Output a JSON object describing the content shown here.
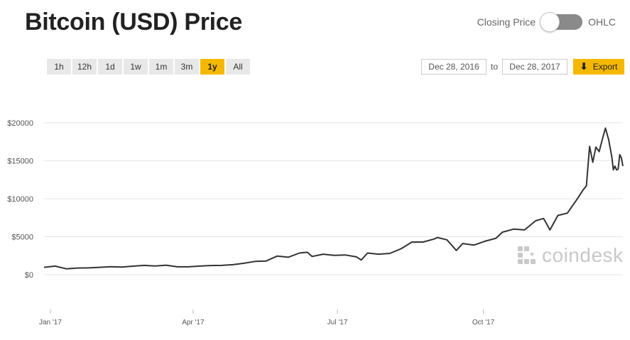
{
  "title": "Bitcoin (USD) Price",
  "toggle": {
    "left_label": "Closing Price",
    "right_label": "OHLC"
  },
  "ranges": [
    {
      "label": "1h",
      "active": false
    },
    {
      "label": "12h",
      "active": false
    },
    {
      "label": "1d",
      "active": false
    },
    {
      "label": "1w",
      "active": false
    },
    {
      "label": "1m",
      "active": false
    },
    {
      "label": "3m",
      "active": false
    },
    {
      "label": "1y",
      "active": true
    },
    {
      "label": "All",
      "active": false
    }
  ],
  "date_range": {
    "from": "Dec 28, 2016",
    "separator": "to",
    "to": "Dec 28, 2017"
  },
  "export_label": "Export",
  "watermark": "coindesk",
  "colors": {
    "accent": "#f5b800",
    "line": "#333333",
    "grid": "#e6e6e6",
    "watermark": "#c9c9c9"
  },
  "chart_data": {
    "type": "line",
    "ylim": [
      0,
      20000
    ],
    "y_ticks": [
      {
        "value": 0,
        "label": "$0"
      },
      {
        "value": 5000,
        "label": "$5000"
      },
      {
        "value": 10000,
        "label": "$10000"
      },
      {
        "value": 15000,
        "label": "$15000"
      },
      {
        "value": 20000,
        "label": "$20000"
      }
    ],
    "x_ticks": [
      {
        "date": "2017-01-01",
        "label": "Jan '17"
      },
      {
        "date": "2017-04-01",
        "label": "Apr '17"
      },
      {
        "date": "2017-07-01",
        "label": "Jul '17"
      },
      {
        "date": "2017-10-01",
        "label": "Oct '17"
      }
    ],
    "xlim": [
      "2016-12-28",
      "2017-12-28"
    ],
    "series": [
      {
        "points": [
          [
            "2016-12-28",
            975
          ],
          [
            "2017-01-04",
            1130
          ],
          [
            "2017-01-11",
            780
          ],
          [
            "2017-01-18",
            880
          ],
          [
            "2017-01-25",
            900
          ],
          [
            "2017-02-01",
            970
          ],
          [
            "2017-02-08",
            1050
          ],
          [
            "2017-02-15",
            1010
          ],
          [
            "2017-02-22",
            1120
          ],
          [
            "2017-03-01",
            1220
          ],
          [
            "2017-03-08",
            1150
          ],
          [
            "2017-03-15",
            1250
          ],
          [
            "2017-03-22",
            1040
          ],
          [
            "2017-03-29",
            1040
          ],
          [
            "2017-04-05",
            1130
          ],
          [
            "2017-04-12",
            1210
          ],
          [
            "2017-04-19",
            1220
          ],
          [
            "2017-04-26",
            1320
          ],
          [
            "2017-05-03",
            1500
          ],
          [
            "2017-05-10",
            1750
          ],
          [
            "2017-05-17",
            1800
          ],
          [
            "2017-05-24",
            2450
          ],
          [
            "2017-05-31",
            2300
          ],
          [
            "2017-06-07",
            2850
          ],
          [
            "2017-06-12",
            2950
          ],
          [
            "2017-06-15",
            2400
          ],
          [
            "2017-06-22",
            2700
          ],
          [
            "2017-06-29",
            2550
          ],
          [
            "2017-07-06",
            2600
          ],
          [
            "2017-07-13",
            2350
          ],
          [
            "2017-07-16",
            1930
          ],
          [
            "2017-07-20",
            2850
          ],
          [
            "2017-07-27",
            2700
          ],
          [
            "2017-08-03",
            2800
          ],
          [
            "2017-08-10",
            3400
          ],
          [
            "2017-08-17",
            4300
          ],
          [
            "2017-08-24",
            4300
          ],
          [
            "2017-08-31",
            4700
          ],
          [
            "2017-09-02",
            4900
          ],
          [
            "2017-09-08",
            4600
          ],
          [
            "2017-09-14",
            3200
          ],
          [
            "2017-09-18",
            4100
          ],
          [
            "2017-09-25",
            3900
          ],
          [
            "2017-10-02",
            4400
          ],
          [
            "2017-10-09",
            4800
          ],
          [
            "2017-10-13",
            5600
          ],
          [
            "2017-10-20",
            6000
          ],
          [
            "2017-10-27",
            5900
          ],
          [
            "2017-11-03",
            7100
          ],
          [
            "2017-11-08",
            7400
          ],
          [
            "2017-11-12",
            5900
          ],
          [
            "2017-11-17",
            7800
          ],
          [
            "2017-11-23",
            8100
          ],
          [
            "2017-11-29",
            9900
          ],
          [
            "2017-12-03",
            11200
          ],
          [
            "2017-12-05",
            11700
          ],
          [
            "2017-12-07",
            16900
          ],
          [
            "2017-12-09",
            14800
          ],
          [
            "2017-12-11",
            16800
          ],
          [
            "2017-12-13",
            16200
          ],
          [
            "2017-12-15",
            17800
          ],
          [
            "2017-12-17",
            19300
          ],
          [
            "2017-12-19",
            17800
          ],
          [
            "2017-12-21",
            15500
          ],
          [
            "2017-12-22",
            13800
          ],
          [
            "2017-12-23",
            14300
          ],
          [
            "2017-12-24",
            13800
          ],
          [
            "2017-12-25",
            13900
          ],
          [
            "2017-12-26",
            15800
          ],
          [
            "2017-12-27",
            15400
          ],
          [
            "2017-12-28",
            14300
          ]
        ]
      }
    ]
  }
}
